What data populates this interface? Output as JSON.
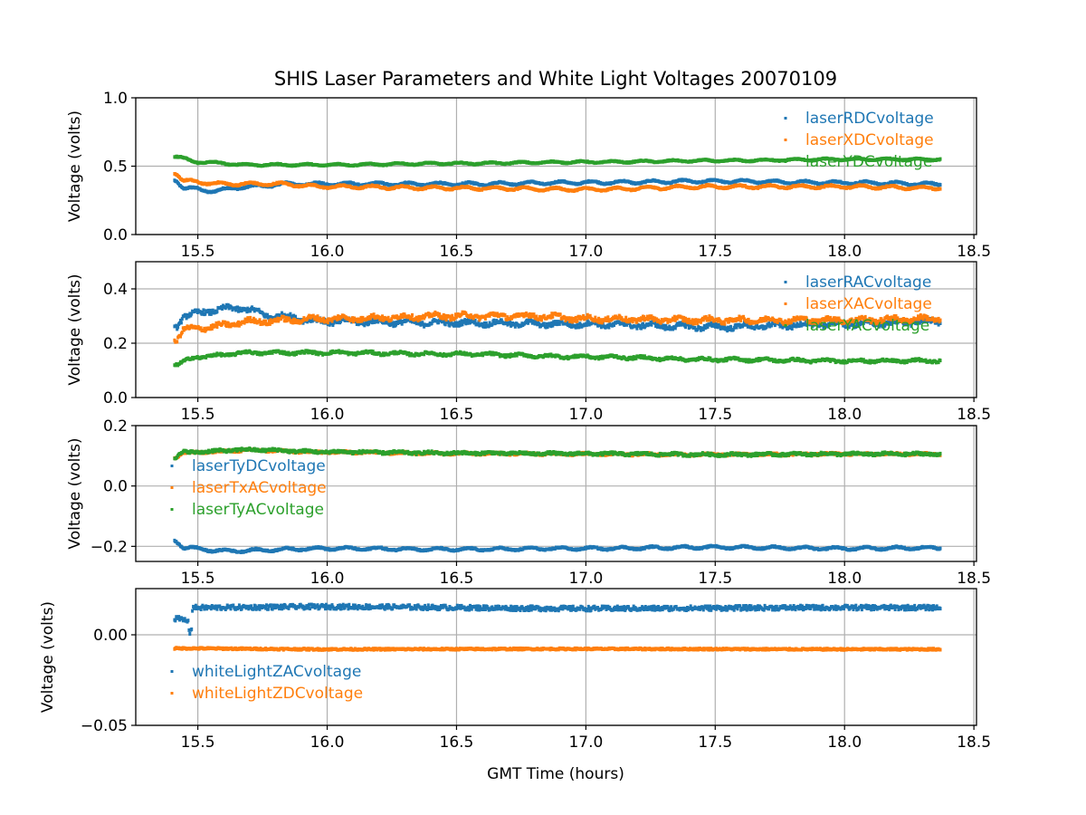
{
  "chart_data": {
    "type": "scatter",
    "title": "SHIS Laser Parameters and White Light Voltages 20070109",
    "xlabel": "GMT Time (hours)",
    "xlim": [
      15.26,
      18.51
    ],
    "x_start": 15.41,
    "x_end": 18.37,
    "x_ticks": [
      15.5,
      16.0,
      16.5,
      17.0,
      17.5,
      18.0,
      18.5
    ],
    "x_tick_labels": [
      "15.5",
      "16.0",
      "16.5",
      "17.0",
      "17.5",
      "18.0",
      "18.5"
    ],
    "grid": true,
    "panels": [
      {
        "ylabel": "Voltage (volts)",
        "ylim": [
          0.0,
          1.0
        ],
        "y_ticks": [
          0.0,
          0.5,
          1.0
        ],
        "y_tick_labels": [
          "0.0",
          "0.5",
          "1.0"
        ],
        "legend_position": "top-right",
        "series": [
          {
            "name": "laserRDCvoltage",
            "color": "#1f77b4",
            "keyframes": [
              [
                15.41,
                0.4
              ],
              [
                15.45,
                0.34
              ],
              [
                15.55,
                0.32
              ],
              [
                15.7,
                0.35
              ],
              [
                15.85,
                0.37
              ],
              [
                16.5,
                0.37
              ],
              [
                17.0,
                0.38
              ],
              [
                17.5,
                0.39
              ],
              [
                18.0,
                0.38
              ],
              [
                18.37,
                0.37
              ]
            ],
            "oscillation": 0.01,
            "noise": 0.004
          },
          {
            "name": "laserXDCvoltage",
            "color": "#ff7f0e",
            "keyframes": [
              [
                15.41,
                0.45
              ],
              [
                15.45,
                0.39
              ],
              [
                15.6,
                0.37
              ],
              [
                15.8,
                0.37
              ],
              [
                16.0,
                0.35
              ],
              [
                16.5,
                0.34
              ],
              [
                17.0,
                0.33
              ],
              [
                17.5,
                0.35
              ],
              [
                18.0,
                0.35
              ],
              [
                18.37,
                0.34
              ]
            ],
            "oscillation": 0.01,
            "noise": 0.004
          },
          {
            "name": "laserYDCvoltage",
            "color": "#2ca02c",
            "keyframes": [
              [
                15.41,
                0.57
              ],
              [
                15.5,
                0.53
              ],
              [
                15.7,
                0.51
              ],
              [
                16.0,
                0.51
              ],
              [
                16.5,
                0.52
              ],
              [
                17.0,
                0.53
              ],
              [
                17.5,
                0.54
              ],
              [
                18.0,
                0.55
              ],
              [
                18.37,
                0.55
              ]
            ],
            "oscillation": 0.006,
            "noise": 0.003
          }
        ]
      },
      {
        "ylabel": "Voltage (volts)",
        "ylim": [
          0.0,
          0.5
        ],
        "y_ticks": [
          0.0,
          0.2,
          0.4
        ],
        "y_tick_labels": [
          "0.0",
          "0.2",
          "0.4"
        ],
        "legend_position": "top-right",
        "series": [
          {
            "name": "laserRACvoltage",
            "color": "#1f77b4",
            "keyframes": [
              [
                15.41,
                0.26
              ],
              [
                15.45,
                0.3
              ],
              [
                15.55,
                0.32
              ],
              [
                15.65,
                0.33
              ],
              [
                15.8,
                0.3
              ],
              [
                16.0,
                0.28
              ],
              [
                16.5,
                0.275
              ],
              [
                17.0,
                0.27
              ],
              [
                17.5,
                0.26
              ],
              [
                18.0,
                0.27
              ],
              [
                18.37,
                0.28
              ]
            ],
            "oscillation": 0.007,
            "noise": 0.008
          },
          {
            "name": "laserXACvoltage",
            "color": "#ff7f0e",
            "keyframes": [
              [
                15.41,
                0.21
              ],
              [
                15.45,
                0.25
              ],
              [
                15.55,
                0.26
              ],
              [
                15.7,
                0.28
              ],
              [
                16.0,
                0.29
              ],
              [
                16.5,
                0.3
              ],
              [
                16.8,
                0.3
              ],
              [
                17.0,
                0.29
              ],
              [
                17.5,
                0.285
              ],
              [
                18.0,
                0.285
              ],
              [
                18.37,
                0.29
              ]
            ],
            "oscillation": 0.007,
            "noise": 0.008
          },
          {
            "name": "laserYACvoltage",
            "color": "#2ca02c",
            "keyframes": [
              [
                15.41,
                0.12
              ],
              [
                15.5,
                0.15
              ],
              [
                15.7,
                0.165
              ],
              [
                16.0,
                0.165
              ],
              [
                16.5,
                0.16
              ],
              [
                17.0,
                0.15
              ],
              [
                17.5,
                0.14
              ],
              [
                18.0,
                0.135
              ],
              [
                18.37,
                0.135
              ]
            ],
            "oscillation": 0.004,
            "noise": 0.004
          }
        ]
      },
      {
        "ylabel": "Voltage (volts)",
        "ylim": [
          -0.25,
          0.2
        ],
        "y_ticks": [
          -0.2,
          0.0,
          0.2
        ],
        "y_tick_labels": [
          "−0.2",
          "0.0",
          "0.2"
        ],
        "legend_position": "center-left",
        "series": [
          {
            "name": "laserTyDCvoltage",
            "color": "#1f77b4",
            "keyframes": [
              [
                15.41,
                -0.18
              ],
              [
                15.45,
                -0.205
              ],
              [
                15.6,
                -0.215
              ],
              [
                16.0,
                -0.207
              ],
              [
                16.5,
                -0.21
              ],
              [
                17.0,
                -0.207
              ],
              [
                17.5,
                -0.203
              ],
              [
                18.0,
                -0.207
              ],
              [
                18.37,
                -0.205
              ]
            ],
            "oscillation": 0.004,
            "noise": 0.002
          },
          {
            "name": "laserTxACvoltage",
            "color": "#ff7f0e",
            "keyframes": [
              [
                15.41,
                0.095
              ],
              [
                15.45,
                0.11
              ],
              [
                15.7,
                0.118
              ],
              [
                16.0,
                0.112
              ],
              [
                16.5,
                0.108
              ],
              [
                17.0,
                0.106
              ],
              [
                17.5,
                0.104
              ],
              [
                18.0,
                0.106
              ],
              [
                18.37,
                0.106
              ]
            ],
            "oscillation": 0.002,
            "noise": 0.003
          },
          {
            "name": "laserTyACvoltage",
            "color": "#2ca02c",
            "keyframes": [
              [
                15.41,
                0.095
              ],
              [
                15.45,
                0.112
              ],
              [
                15.7,
                0.12
              ],
              [
                16.0,
                0.113
              ],
              [
                16.5,
                0.109
              ],
              [
                17.0,
                0.107
              ],
              [
                17.5,
                0.104
              ],
              [
                18.0,
                0.106
              ],
              [
                18.37,
                0.106
              ]
            ],
            "oscillation": 0.002,
            "noise": 0.004
          }
        ]
      },
      {
        "ylabel": "Voltage (volts)",
        "ylim": [
          -0.05,
          0.0255
        ],
        "y_ticks": [
          -0.05,
          0.0
        ],
        "y_tick_labels": [
          "−0.05",
          "0.00"
        ],
        "legend_position": "lower-left",
        "series": [
          {
            "name": "whiteLightZACvoltage",
            "color": "#1f77b4",
            "keyframes": [
              [
                15.41,
                0.009
              ],
              [
                15.46,
                0.008
              ],
              [
                15.47,
                0.001
              ],
              [
                15.475,
                0.003
              ],
              [
                15.48,
                0.015
              ],
              [
                16.0,
                0.0155
              ],
              [
                17.0,
                0.0145
              ],
              [
                18.0,
                0.015
              ],
              [
                18.37,
                0.015
              ]
            ],
            "oscillation": 0.0,
            "noise": 0.0012
          },
          {
            "name": "whiteLightZDCvoltage",
            "color": "#ff7f0e",
            "keyframes": [
              [
                15.41,
                -0.0075
              ],
              [
                16.0,
                -0.008
              ],
              [
                17.0,
                -0.0078
              ],
              [
                18.0,
                -0.008
              ],
              [
                18.37,
                -0.008
              ]
            ],
            "oscillation": 0.0,
            "noise": 0.0004
          }
        ]
      }
    ]
  }
}
